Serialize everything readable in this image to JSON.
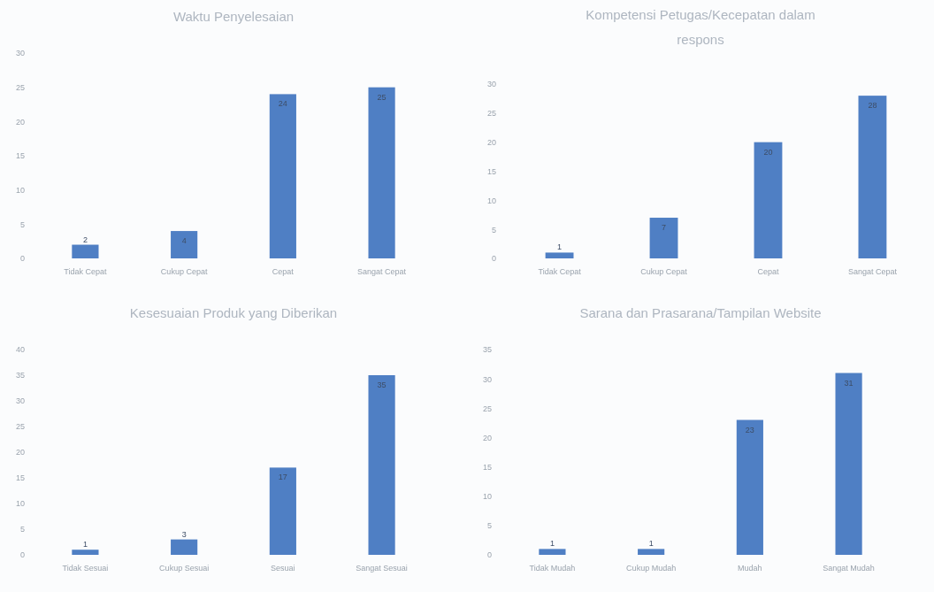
{
  "chart_data": [
    {
      "type": "bar",
      "title": "Waktu Penyelesaian",
      "categories": [
        "Tidak Cepat",
        "Cukup Cepat",
        "Cepat",
        "Sangat Cepat"
      ],
      "values": [
        2,
        4,
        24,
        25
      ],
      "color": "#4f7fc4",
      "ylim": [
        0,
        30
      ],
      "yticks": [
        0,
        5,
        10,
        15,
        20,
        25,
        30
      ],
      "data_labels": true,
      "grid": false
    },
    {
      "type": "bar",
      "title": "Kompetensi Petugas/Kecepatan dalam respons",
      "categories": [
        "Tidak Cepat",
        "Cukup Cepat",
        "Cepat",
        "Sangat Cepat"
      ],
      "values": [
        1,
        7,
        20,
        28
      ],
      "color": "#4f7fc4",
      "ylim": [
        0,
        30
      ],
      "yticks": [
        0,
        5,
        10,
        15,
        20,
        25,
        30
      ],
      "data_labels": true,
      "grid": false
    },
    {
      "type": "bar",
      "title": "Kesesuaian Produk yang Diberikan",
      "categories": [
        "Tidak Sesuai",
        "Cukup Sesuai",
        "Sesuai",
        "Sangat Sesuai"
      ],
      "values": [
        1,
        3,
        17,
        35
      ],
      "color": "#4f7fc4",
      "ylim": [
        0,
        40
      ],
      "yticks": [
        0,
        5,
        10,
        15,
        20,
        25,
        30,
        35,
        40
      ],
      "data_labels": true,
      "grid": false
    },
    {
      "type": "bar",
      "title": "Sarana dan Prasarana/Tampilan Website",
      "categories": [
        "Tidak Mudah",
        "Cukup Mudah",
        "Mudah",
        "Sangat Mudah"
      ],
      "values": [
        1,
        1,
        23,
        31
      ],
      "color": "#4f7fc4",
      "ylim": [
        0,
        35
      ],
      "yticks": [
        0,
        5,
        10,
        15,
        20,
        25,
        30,
        35
      ],
      "data_labels": true,
      "grid": false
    }
  ]
}
